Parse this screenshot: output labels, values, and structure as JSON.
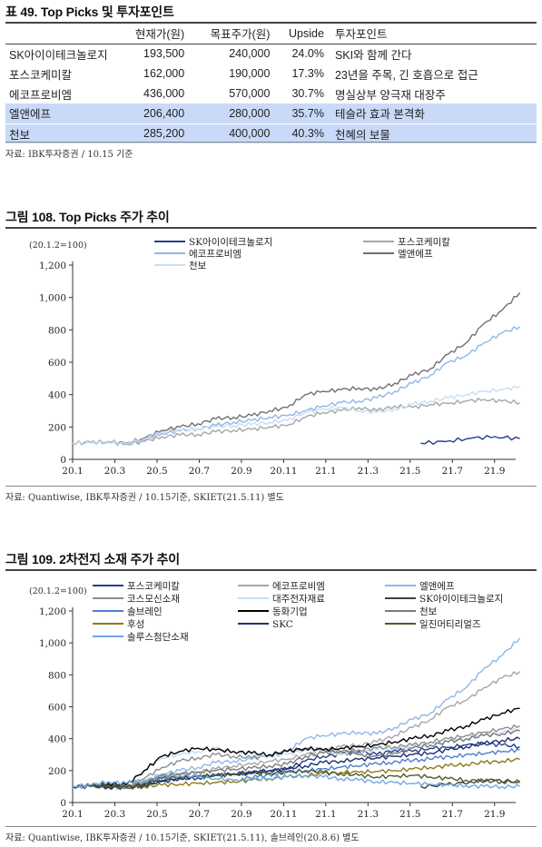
{
  "table": {
    "title": "표 49. Top Picks 및 투자포인트",
    "headers": [
      "",
      "현재가(원)",
      "목표주가(원)",
      "Upside",
      "투자포인트"
    ],
    "rows": [
      {
        "name": "SK아이이테크놀로지",
        "price": "193,500",
        "target": "240,000",
        "upside": "24.0%",
        "point": "SKI와 함께 간다"
      },
      {
        "name": "포스코케미칼",
        "price": "162,000",
        "target": "190,000",
        "upside": "17.3%",
        "point": "23년을 주목, 긴 호흡으로 접근"
      },
      {
        "name": "에코프로비엠",
        "price": "436,000",
        "target": "570,000",
        "upside": "30.7%",
        "point": "명실상부 양극재 대장주"
      },
      {
        "name": "엘앤에프",
        "price": "206,400",
        "target": "280,000",
        "upside": "35.7%",
        "point": "테슬라 효과 본격화"
      },
      {
        "name": "천보",
        "price": "285,200",
        "target": "400,000",
        "upside": "40.3%",
        "point": "천혜의 보물"
      }
    ],
    "source": "자료: IBK투자증권 / 10.15 기준"
  },
  "chart_data": [
    {
      "type": "line",
      "title": "그림 108. Top Picks 주가 추이",
      "unit_note": "(20.1.2=100)",
      "ylim": [
        0,
        1200
      ],
      "yticks": [
        0,
        200,
        400,
        600,
        800,
        1000,
        1200
      ],
      "ytick_labels": [
        "0",
        "200",
        "400",
        "600",
        "800",
        "1,000",
        "1,200"
      ],
      "x_ticks": [
        "20.1",
        "20.3",
        "20.5",
        "20.7",
        "20.9",
        "20.11",
        "21.1",
        "21.3",
        "21.5",
        "21.7",
        "21.9"
      ],
      "legend_placement": "top",
      "series": [
        {
          "name": "SK아이이테크놀로지",
          "color": "#1f3f8f",
          "start": 16.5,
          "values": [
            100,
            110,
            130,
            140,
            128
          ]
        },
        {
          "name": "포스코케미칼",
          "color": "#a6a6a6",
          "values": [
            100,
            102,
            105,
            92,
            110,
            140,
            150,
            155,
            170,
            180,
            185,
            200,
            210,
            260,
            290,
            300,
            320,
            300,
            330,
            320,
            340,
            345,
            360,
            370,
            360,
            350
          ]
        },
        {
          "name": "에코프로비엠",
          "color": "#8fb8e8",
          "values": [
            100,
            103,
            108,
            95,
            120,
            160,
            175,
            190,
            210,
            230,
            240,
            260,
            270,
            300,
            330,
            350,
            360,
            380,
            420,
            470,
            520,
            600,
            640,
            720,
            780,
            820
          ]
        },
        {
          "name": "엘앤에프",
          "color": "#707070",
          "values": [
            100,
            105,
            110,
            100,
            130,
            180,
            200,
            220,
            250,
            260,
            270,
            300,
            320,
            400,
            420,
            430,
            440,
            430,
            470,
            520,
            560,
            650,
            720,
            840,
            920,
            1030
          ]
        },
        {
          "name": "천보",
          "color": "#c7ddf5",
          "values": [
            100,
            102,
            108,
            96,
            125,
            170,
            180,
            190,
            200,
            210,
            215,
            230,
            240,
            290,
            310,
            320,
            300,
            290,
            310,
            340,
            360,
            380,
            400,
            420,
            430,
            450
          ]
        }
      ],
      "source": "자료: Quantiwise, IBK투자증권 / 10.15기준, SKIET(21.5.11) 별도"
    },
    {
      "type": "line",
      "title": "그림 109. 2차전지 소재 주가 추이",
      "unit_note": "(20.1.2=100)",
      "ylim": [
        0,
        1200
      ],
      "yticks": [
        0,
        200,
        400,
        600,
        800,
        1000,
        1200
      ],
      "ytick_labels": [
        "0",
        "200",
        "400",
        "600",
        "800",
        "1,000",
        "1,200"
      ],
      "x_ticks": [
        "20.1",
        "20.3",
        "20.5",
        "20.7",
        "20.9",
        "20.11",
        "21.1",
        "21.3",
        "21.5",
        "21.7",
        "21.9"
      ],
      "legend_placement": "top",
      "series": [
        {
          "name": "포스코케미칼",
          "color": "#1f3f8f",
          "values": [
            100,
            102,
            105,
            92,
            110,
            140,
            150,
            155,
            170,
            180,
            185,
            200,
            210,
            260,
            290,
            300,
            320,
            300,
            330,
            320,
            340,
            345,
            360,
            370,
            360,
            350
          ]
        },
        {
          "name": "에코프로비엠",
          "color": "#a6a6a6",
          "values": [
            100,
            103,
            108,
            95,
            120,
            160,
            175,
            190,
            210,
            230,
            240,
            260,
            270,
            300,
            330,
            350,
            360,
            380,
            420,
            470,
            520,
            600,
            640,
            720,
            780,
            820
          ]
        },
        {
          "name": "엘앤에프",
          "color": "#8fb8e8",
          "values": [
            100,
            105,
            110,
            100,
            130,
            180,
            200,
            220,
            250,
            260,
            270,
            300,
            320,
            400,
            420,
            430,
            440,
            430,
            470,
            520,
            560,
            650,
            720,
            840,
            920,
            1030
          ]
        },
        {
          "name": "코스모신소재",
          "color": "#8c8c8c",
          "values": [
            100,
            104,
            110,
            100,
            150,
            220,
            260,
            280,
            300,
            290,
            280,
            300,
            320,
            340,
            330,
            320,
            330,
            340,
            350,
            360,
            380,
            400,
            420,
            440,
            460,
            480
          ]
        },
        {
          "name": "대주전자재료",
          "color": "#c7ddf5",
          "values": [
            100,
            106,
            115,
            110,
            200,
            280,
            300,
            320,
            340,
            320,
            300,
            290,
            300,
            330,
            320,
            300,
            310,
            330,
            340,
            350,
            360,
            380,
            400,
            420,
            440,
            460
          ]
        },
        {
          "name": "SK아이이테크놀로지",
          "color": "#404040",
          "start": 16.5,
          "values": [
            100,
            110,
            130,
            140,
            128
          ]
        },
        {
          "name": "솔브레인",
          "color": "#4a7fd0",
          "start": 8,
          "values": [
            150,
            160,
            180,
            190,
            200,
            210,
            220,
            230,
            240,
            250,
            260,
            270,
            280,
            290,
            300,
            310,
            320,
            330
          ]
        },
        {
          "name": "동화기업",
          "color": "#000000",
          "values": [
            100,
            105,
            120,
            110,
            200,
            290,
            320,
            340,
            330,
            320,
            310,
            300,
            320,
            340,
            330,
            340,
            350,
            360,
            380,
            400,
            420,
            450,
            480,
            520,
            560,
            590
          ]
        },
        {
          "name": "천보",
          "color": "#7a7a7a",
          "values": [
            100,
            102,
            108,
            96,
            125,
            170,
            180,
            190,
            200,
            210,
            215,
            230,
            240,
            290,
            310,
            320,
            300,
            290,
            310,
            340,
            360,
            380,
            400,
            420,
            430,
            450
          ]
        },
        {
          "name": "후성",
          "color": "#8c7a1a",
          "values": [
            100,
            100,
            95,
            90,
            100,
            110,
            115,
            120,
            125,
            130,
            140,
            150,
            160,
            170,
            180,
            190,
            190,
            195,
            200,
            210,
            220,
            230,
            240,
            250,
            260,
            270
          ]
        },
        {
          "name": "SKC",
          "color": "#1f2f6f",
          "values": [
            100,
            102,
            98,
            95,
            110,
            130,
            150,
            160,
            170,
            180,
            190,
            200,
            210,
            230,
            250,
            260,
            270,
            280,
            290,
            300,
            310,
            330,
            350,
            370,
            390,
            400
          ]
        },
        {
          "name": "일진머티리얼즈",
          "color": "#4f5a2f",
          "values": [
            100,
            105,
            110,
            95,
            120,
            150,
            160,
            165,
            170,
            175,
            180,
            185,
            190,
            200,
            190,
            180,
            170,
            160,
            165,
            170,
            160,
            150,
            140,
            135,
            130,
            130
          ]
        },
        {
          "name": "솔루스첨단소재",
          "color": "#6fa8e0",
          "values": [
            100,
            110,
            130,
            120,
            140,
            160,
            170,
            160,
            150,
            140,
            145,
            150,
            160,
            170,
            160,
            150,
            140,
            130,
            125,
            120,
            115,
            110,
            105,
            100,
            100,
            100
          ]
        }
      ],
      "source": "자료: Quantiwise, IBK투자증권 / 10.15기준, SKIET(21.5.11), 솔브레인(20.8.6) 별도"
    }
  ]
}
